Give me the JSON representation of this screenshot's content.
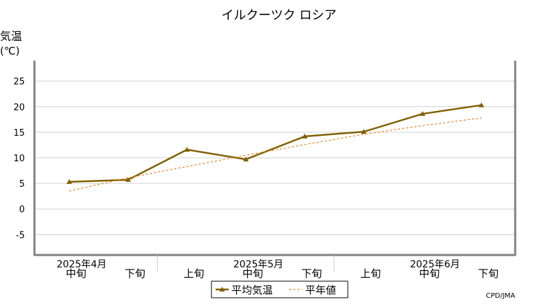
{
  "chart_data": {
    "type": "line",
    "title": "イルクーツク ロシア",
    "ylabel": "気温",
    "yunit": "(℃)",
    "ylim": [
      -9,
      29
    ],
    "yticks": [
      -5,
      0,
      5,
      10,
      15,
      20,
      25
    ],
    "grid": true,
    "categories": [
      "中旬",
      "下旬",
      "上旬",
      "中旬",
      "下旬",
      "上旬",
      "中旬",
      "下旬"
    ],
    "months": [
      {
        "label": "2025年4月",
        "at": 0
      },
      {
        "label": "2025年5月",
        "at": 3
      },
      {
        "label": "2025年6月",
        "at": 6
      }
    ],
    "series": [
      {
        "name": "平均気温",
        "color": "#806000",
        "style": "solid",
        "marker": "triangle",
        "values": [
          5.3,
          5.7,
          11.6,
          9.7,
          14.2,
          15.1,
          18.6,
          20.3
        ]
      },
      {
        "name": "平年値",
        "color": "#f08020",
        "style": "dashed",
        "values": [
          3.5,
          6.1,
          8.3,
          10.5,
          12.6,
          14.6,
          16.3,
          17.8
        ]
      }
    ],
    "legend_position": "bottom",
    "credit": "CPD/JMA"
  }
}
